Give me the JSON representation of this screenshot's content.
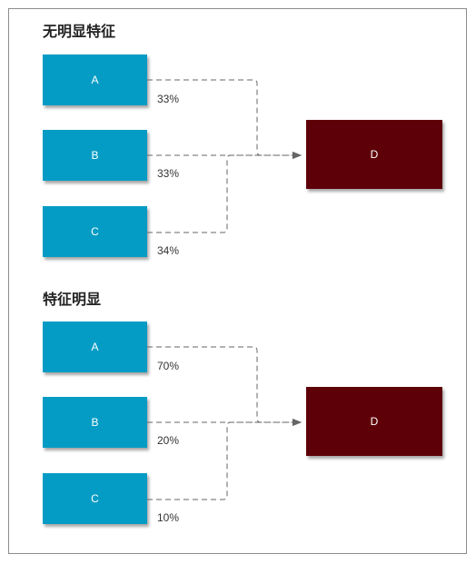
{
  "sections": [
    {
      "title": "无明显特征",
      "sources": [
        {
          "label": "A",
          "percent": "33%"
        },
        {
          "label": "B",
          "percent": "33%"
        },
        {
          "label": "C",
          "percent": "34%"
        }
      ],
      "target": {
        "label": "D"
      }
    },
    {
      "title": "特征明显",
      "sources": [
        {
          "label": "A",
          "percent": "70%"
        },
        {
          "label": "B",
          "percent": "20%"
        },
        {
          "label": "C",
          "percent": "10%"
        }
      ],
      "target": {
        "label": "D"
      }
    }
  ],
  "colors": {
    "source_fill": "#049cc4",
    "target_fill": "#5e0008",
    "connector": "#666666"
  }
}
